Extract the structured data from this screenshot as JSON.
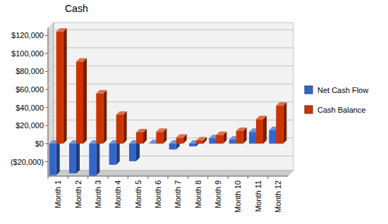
{
  "chart_data": {
    "type": "bar",
    "title": "Cash",
    "categories": [
      "Month 1",
      "Month 2",
      "Month 3",
      "Month 4",
      "Month 5",
      "Month 6",
      "Month 7",
      "Month 8",
      "Month 9",
      "Month 10",
      "Month 11",
      "Month 12"
    ],
    "series": [
      {
        "name": "Net Cash Flow",
        "color": "#3366cc",
        "values": [
          -35000,
          -33000,
          -35500,
          -23500,
          -19500,
          500,
          -6500,
          -3000,
          6000,
          4500,
          13000,
          15000
        ]
      },
      {
        "name": "Cash Balance",
        "color": "#cc3300",
        "values": [
          124000,
          91000,
          55500,
          32000,
          12500,
          13000,
          6500,
          3500,
          9500,
          14000,
          27000,
          42000
        ]
      }
    ],
    "ylim": [
      -36000,
      128000
    ],
    "yticks": [
      {
        "value": -20000,
        "label": "($20,000)"
      },
      {
        "value": 0,
        "label": "$0"
      },
      {
        "value": 20000,
        "label": "$20,000"
      },
      {
        "value": 40000,
        "label": "$40,000"
      },
      {
        "value": 60000,
        "label": "$60,000"
      },
      {
        "value": 80000,
        "label": "$80,000"
      },
      {
        "value": 100000,
        "label": "$100,000"
      },
      {
        "value": 120000,
        "label": "$120,000"
      }
    ],
    "grid": true,
    "legend": "right"
  }
}
